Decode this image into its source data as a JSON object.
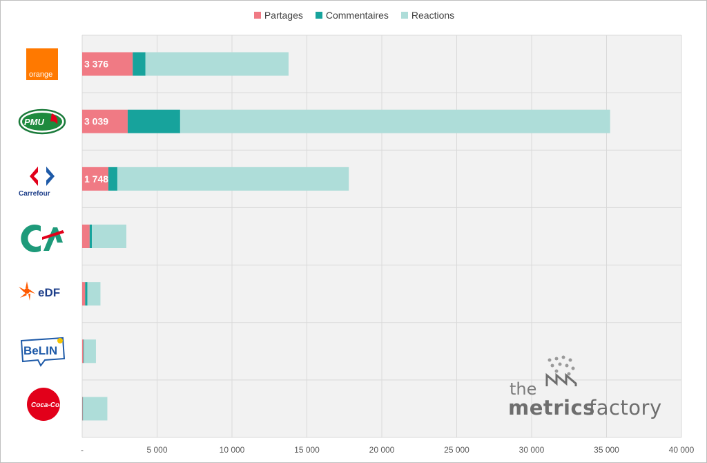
{
  "chart_data": {
    "type": "bar",
    "orientation": "horizontal",
    "stacked": true,
    "categories": [
      "orange",
      "PMU",
      "Carrefour",
      "Crédit Agricole",
      "EDF",
      "Belin",
      "Coca-Cola"
    ],
    "series": [
      {
        "name": "Partages",
        "color": "#f07a84",
        "values": [
          3376,
          3039,
          1748,
          500,
          200,
          80,
          30
        ]
      },
      {
        "name": "Commentaires",
        "color": "#17a39c",
        "values": [
          850,
          3500,
          600,
          150,
          150,
          40,
          30
        ]
      },
      {
        "name": "Reactions",
        "color": "#aeddd9",
        "values": [
          9550,
          28700,
          15450,
          2300,
          870,
          800,
          1620
        ]
      }
    ],
    "data_labels": [
      {
        "series": "Partages",
        "category": "orange",
        "text": "3 376"
      },
      {
        "series": "Partages",
        "category": "PMU",
        "text": "3 039"
      },
      {
        "series": "Partages",
        "category": "Carrefour",
        "text": "1 748"
      }
    ],
    "xlim": [
      0,
      40000
    ],
    "x_ticks": [
      0,
      5000,
      10000,
      15000,
      20000,
      25000,
      30000,
      35000,
      40000
    ],
    "x_tick_labels": [
      "-",
      "5 000",
      "10 000",
      "15 000",
      "20 000",
      "25 000",
      "30 000",
      "35 000",
      "40 000"
    ],
    "legend_position": "top-center",
    "grid": true,
    "title": "",
    "xlabel": "",
    "ylabel": ""
  },
  "logos": {
    "orange": "orange",
    "pmu": "PMU",
    "carrefour": "Carrefour",
    "edf": "eDF",
    "belin": "BeLIN",
    "cocacola": "Coca-Cola"
  },
  "watermark": {
    "line1": "the",
    "line2_bold": "metrics",
    "line2_light": "factory"
  }
}
